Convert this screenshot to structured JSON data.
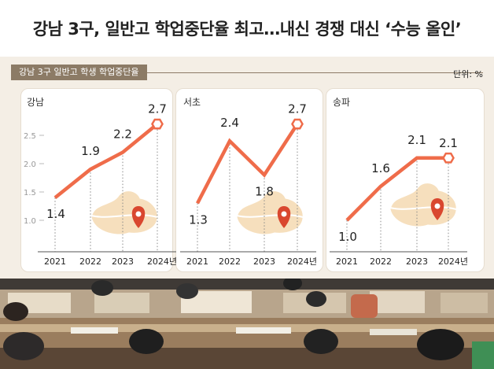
{
  "headline": "강남 3구, 일반고 학업중단율 최고…내신 경쟁 대신 ‘수능 올인’",
  "chart_header": {
    "title": "강남 3구 일반고 학생 학업중단율",
    "unit": "단위: %"
  },
  "chart_data": [
    {
      "type": "line",
      "district": "강남",
      "categories": [
        "2021",
        "2022",
        "2023",
        "2024년"
      ],
      "values": [
        1.4,
        1.9,
        2.2,
        2.7
      ],
      "yticks": [
        "1.0",
        "1.5",
        "2.0",
        "2.5"
      ],
      "ylim": [
        0.75,
        2.85
      ]
    },
    {
      "type": "line",
      "district": "서초",
      "categories": [
        "2021",
        "2022",
        "2023",
        "2024년"
      ],
      "values": [
        1.3,
        2.4,
        1.8,
        2.7
      ],
      "ylim": [
        0.75,
        2.85
      ]
    },
    {
      "type": "line",
      "district": "송파",
      "categories": [
        "2021",
        "2022",
        "2023",
        "2024년"
      ],
      "values": [
        1.0,
        1.6,
        2.1,
        2.1
      ],
      "ylim": [
        0.75,
        2.85
      ]
    }
  ],
  "colors": {
    "line": "#ef6c4a",
    "header_bar": "#8c7b66",
    "panel_bg": "#f4eee5",
    "map": "#f6dfbd",
    "pin": "#d9472f"
  }
}
